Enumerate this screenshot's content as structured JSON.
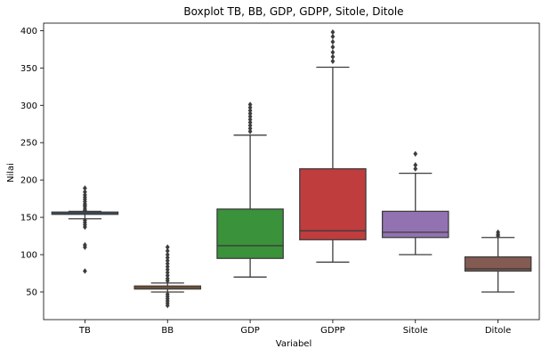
{
  "chart_data": {
    "type": "boxplot",
    "title": "Boxplot TB, BB, GDP, GDPP, Sitole, Ditole",
    "xlabel": "Variabel",
    "ylabel": "Nilai",
    "ylim": [
      13,
      410
    ],
    "yticks": [
      50,
      100,
      150,
      200,
      250,
      300,
      350,
      400
    ],
    "grid": false,
    "categories": [
      "TB",
      "BB",
      "GDP",
      "GDPP",
      "Sitole",
      "Ditole"
    ],
    "boxes": [
      {
        "name": "TB",
        "color": "#3274a1",
        "whislo": 148,
        "q1": 154,
        "median": 155,
        "q3": 157,
        "whishi": 158,
        "fliers": [
          189,
          184,
          180,
          177,
          174,
          171,
          168,
          166,
          164,
          161,
          159,
          146,
          143,
          140,
          137,
          113,
          110,
          78
        ]
      },
      {
        "name": "BB",
        "color": "#e1812c",
        "whislo": 50,
        "q1": 54,
        "median": 56,
        "q3": 58,
        "whishi": 62,
        "fliers": [
          110,
          105,
          100,
          96,
          92,
          88,
          84,
          80,
          76,
          72,
          68,
          65,
          47,
          44,
          41,
          38,
          35,
          32
        ]
      },
      {
        "name": "GDP",
        "color": "#3a923a",
        "whislo": 70,
        "q1": 95,
        "median": 112,
        "q3": 161,
        "whishi": 260,
        "fliers": [
          301,
          297,
          293,
          289,
          285,
          281,
          277,
          273,
          269,
          265
        ]
      },
      {
        "name": "GDPP",
        "color": "#c03d3e",
        "whislo": 90,
        "q1": 120,
        "median": 132,
        "q3": 215,
        "whishi": 351,
        "fliers": [
          398,
          392,
          385,
          378,
          371,
          365,
          359
        ]
      },
      {
        "name": "Sitole",
        "color": "#9372b2",
        "whislo": 100,
        "q1": 123,
        "median": 130,
        "q3": 158,
        "whishi": 209,
        "fliers": [
          235,
          220,
          215
        ]
      },
      {
        "name": "Ditole",
        "color": "#845b53",
        "whislo": 50,
        "q1": 78,
        "median": 81,
        "q3": 97,
        "whishi": 123,
        "fliers": [
          130,
          127,
          125
        ]
      }
    ]
  }
}
